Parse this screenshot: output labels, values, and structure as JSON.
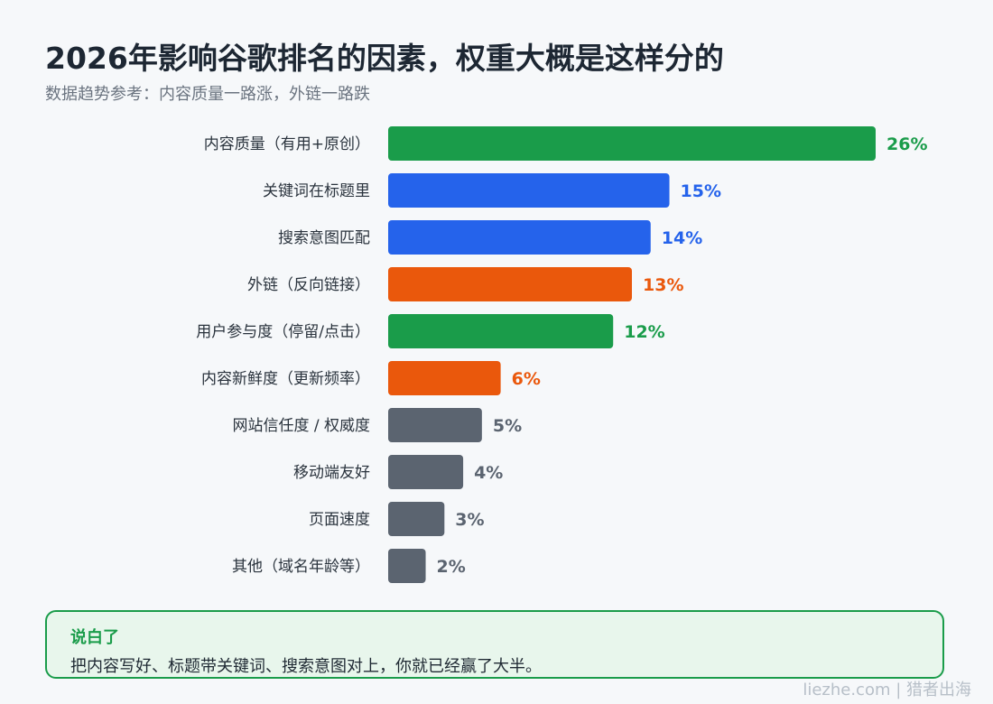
{
  "title": "2026年影响谷歌排名的因素，权重大概是这样分的",
  "subtitle": "数据趋势参考：内容质量一路涨，外链一路跌",
  "chart_data": {
    "type": "bar",
    "orientation": "horizontal",
    "categories": [
      "内容质量（有用+原创）",
      "关键词在标题里",
      "搜索意图匹配",
      "外链（反向链接）",
      "用户参与度（停留/点击）",
      "内容新鲜度（更新频率）",
      "网站信任度 / 权威度",
      "移动端友好",
      "页面速度",
      "其他（域名年龄等）"
    ],
    "values": [
      26,
      15,
      14,
      13,
      12,
      6,
      5,
      4,
      3,
      2
    ],
    "value_labels": [
      "26%",
      "15%",
      "14%",
      "13%",
      "12%",
      "6%",
      "5%",
      "4%",
      "3%",
      "2%"
    ],
    "colors": [
      "#1a9c4a",
      "#2563eb",
      "#2563eb",
      "#ea580c",
      "#1a9c4a",
      "#ea580c",
      "#5b6470",
      "#5b6470",
      "#5b6470",
      "#5b6470"
    ],
    "xlim": [
      0,
      26
    ],
    "grid": false,
    "legend": "none"
  },
  "summary": {
    "title": "说白了",
    "text": "把内容写好、标题带关键词、搜索意图对上，你就已经赢了大半。"
  },
  "footer": "liezhe.com | 猎者出海"
}
